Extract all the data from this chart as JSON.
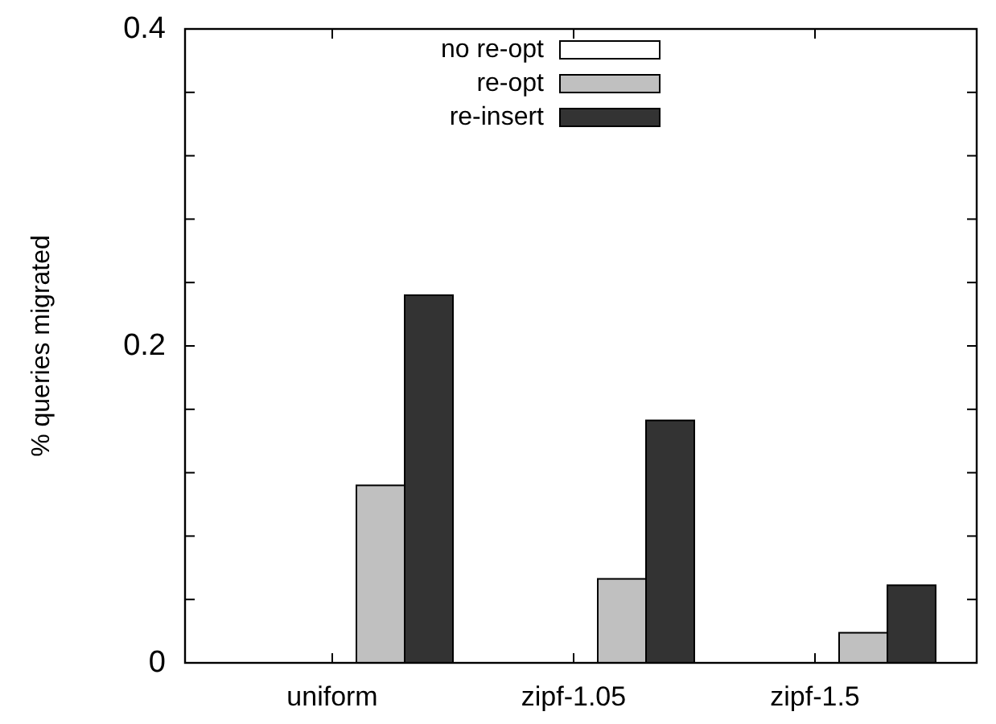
{
  "chart_data": {
    "type": "bar",
    "ylabel": "% queries migrated",
    "categories": [
      "uniform",
      "zipf-1.05",
      "zipf-1.5"
    ],
    "series": [
      {
        "name": "no re-opt",
        "color": "#ffffff",
        "values": [
          0,
          0,
          0
        ]
      },
      {
        "name": "re-opt",
        "color": "#c0c0c0",
        "values": [
          0.112,
          0.053,
          0.019
        ]
      },
      {
        "name": "re-insert",
        "color": "#333333",
        "values": [
          0.232,
          0.153,
          0.049
        ]
      }
    ],
    "ylim": [
      0,
      0.4
    ],
    "yticks": [
      0,
      {
        "value": 0.04,
        "label": null
      },
      {
        "value": 0.08,
        "label": null
      },
      {
        "value": 0.12,
        "label": null
      },
      {
        "value": 0.16,
        "label": null
      },
      0.2,
      {
        "value": 0.24,
        "label": null
      },
      {
        "value": 0.28,
        "label": null
      },
      {
        "value": 0.32,
        "label": null
      },
      {
        "value": 0.36,
        "label": null
      },
      0.4
    ],
    "legend": "top right",
    "grid": false
  }
}
